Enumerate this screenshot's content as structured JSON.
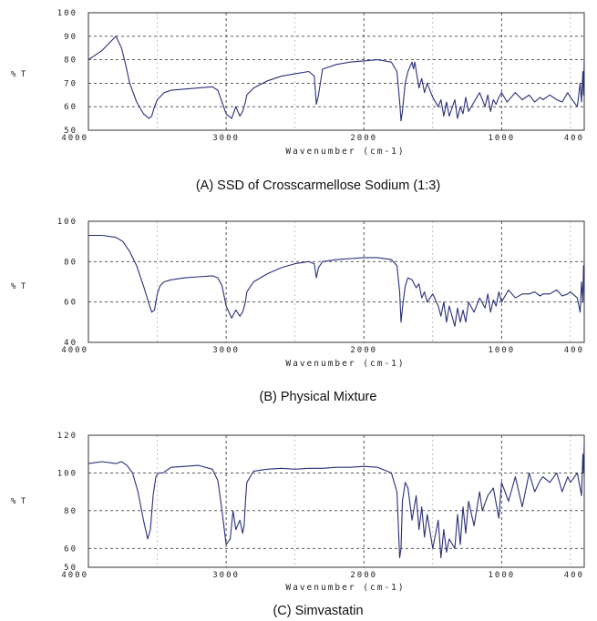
{
  "chart_data": [
    {
      "type": "line",
      "caption": "(A)  SSD of Crosscarmellose Sodium (1:3)",
      "xlabel": "Wavenumber  (cm-1)",
      "ylabel": "% T",
      "xlim": [
        4000,
        400
      ],
      "ylim": [
        50,
        100
      ],
      "x_ticks": [
        4000,
        3000,
        2000,
        1000,
        400
      ],
      "y_ticks": [
        50,
        60,
        70,
        80,
        90,
        100
      ],
      "grid": true,
      "series": [
        {
          "x": [
            4000,
            3900,
            3850,
            3800,
            3760,
            3730,
            3700,
            3650,
            3600,
            3560,
            3540,
            3520,
            3500,
            3450,
            3400,
            3300,
            3200,
            3100,
            3060,
            3000,
            2960,
            2930,
            2900,
            2880,
            2860,
            2850,
            2800,
            2700,
            2600,
            2500,
            2400,
            2360,
            2345,
            2330,
            2300,
            2200,
            2100,
            2000,
            1900,
            1800,
            1760,
            1740,
            1730,
            1720,
            1700,
            1680,
            1650,
            1640,
            1630,
            1600,
            1580,
            1560,
            1540,
            1500,
            1460,
            1440,
            1420,
            1400,
            1380,
            1340,
            1320,
            1300,
            1280,
            1260,
            1240,
            1200,
            1160,
            1120,
            1100,
            1080,
            1060,
            1040,
            1020,
            1000,
            960,
            900,
            850,
            800,
            760,
            720,
            700,
            650,
            600,
            560,
            520,
            500,
            450,
            430,
            420,
            410,
            405,
            400
          ],
          "y": [
            80,
            84,
            87,
            90,
            85,
            78,
            70,
            62,
            57,
            55,
            56,
            60,
            63,
            66,
            67,
            67.5,
            68,
            68.5,
            67,
            57,
            55,
            60,
            56,
            58,
            62,
            65,
            68,
            71,
            73,
            74,
            75,
            73,
            61,
            65,
            76,
            78,
            79,
            79.5,
            80,
            79,
            75,
            62,
            54,
            58,
            70,
            75,
            79,
            76,
            79,
            68,
            72,
            66,
            70,
            64,
            60,
            63,
            56,
            62,
            56,
            63,
            55,
            60,
            57,
            64,
            58,
            62,
            66,
            60,
            65,
            58,
            63,
            61,
            64,
            66,
            62,
            66,
            63,
            65,
            62,
            64,
            63,
            65,
            63,
            62,
            66,
            64,
            60,
            70,
            62,
            75,
            65,
            80
          ]
        }
      ]
    },
    {
      "type": "line",
      "caption": "(B)  Physical Mixture",
      "xlabel": "Wavenumber  (cm-1)",
      "ylabel": "% T",
      "xlim": [
        4000,
        400
      ],
      "ylim": [
        40,
        100
      ],
      "x_ticks": [
        4000,
        3000,
        2000,
        1000,
        400
      ],
      "y_ticks": [
        40,
        60,
        80,
        100
      ],
      "grid": true,
      "series": [
        {
          "x": [
            4000,
            3900,
            3800,
            3750,
            3700,
            3650,
            3600,
            3560,
            3540,
            3520,
            3500,
            3480,
            3450,
            3400,
            3300,
            3200,
            3100,
            3060,
            3030,
            3000,
            2960,
            2930,
            2900,
            2880,
            2860,
            2850,
            2800,
            2700,
            2600,
            2500,
            2400,
            2360,
            2345,
            2330,
            2300,
            2200,
            2100,
            2000,
            1900,
            1800,
            1760,
            1740,
            1730,
            1720,
            1700,
            1680,
            1650,
            1620,
            1600,
            1580,
            1560,
            1540,
            1500,
            1460,
            1440,
            1420,
            1400,
            1380,
            1340,
            1320,
            1300,
            1280,
            1260,
            1240,
            1200,
            1160,
            1120,
            1100,
            1080,
            1060,
            1040,
            1020,
            1000,
            950,
            900,
            850,
            800,
            760,
            720,
            700,
            650,
            600,
            560,
            520,
            500,
            450,
            430,
            420,
            410,
            405,
            400
          ],
          "y": [
            93,
            93,
            92,
            90,
            85,
            78,
            68,
            59,
            55,
            56,
            64,
            68,
            70,
            71,
            72,
            72.5,
            73,
            72,
            68,
            58,
            52,
            56,
            53,
            55,
            60,
            65,
            70,
            74,
            77,
            79,
            80,
            79,
            72,
            77,
            80,
            81,
            81.5,
            82,
            82,
            81,
            78,
            65,
            50,
            57,
            68,
            72,
            71,
            67,
            69,
            62,
            65,
            60,
            64,
            58,
            53,
            60,
            50,
            58,
            48,
            57,
            50,
            56,
            50,
            60,
            55,
            62,
            57,
            64,
            55,
            61,
            58,
            65,
            60,
            66,
            62,
            64,
            64,
            65,
            63,
            64,
            64,
            66,
            63,
            64,
            65,
            62,
            55,
            70,
            60,
            78,
            65
          ]
        }
      ]
    },
    {
      "type": "line",
      "caption": "(C)   Simvastatin",
      "xlabel": "Wavenumber  (cm-1)",
      "ylabel": "% T",
      "xlim": [
        4000,
        400
      ],
      "ylim": [
        50,
        120
      ],
      "x_ticks": [
        4000,
        3000,
        2000,
        1000,
        400
      ],
      "y_ticks": [
        50,
        60,
        80,
        100,
        120
      ],
      "grid": true,
      "series": [
        {
          "x": [
            4000,
            3900,
            3800,
            3760,
            3720,
            3680,
            3640,
            3600,
            3570,
            3550,
            3530,
            3510,
            3490,
            3460,
            3420,
            3400,
            3300,
            3200,
            3100,
            3060,
            3030,
            3000,
            2970,
            2950,
            2930,
            2900,
            2880,
            2870,
            2860,
            2850,
            2800,
            2700,
            2600,
            2500,
            2400,
            2300,
            2200,
            2100,
            2000,
            1900,
            1800,
            1760,
            1740,
            1730,
            1720,
            1700,
            1680,
            1650,
            1620,
            1600,
            1580,
            1560,
            1540,
            1500,
            1460,
            1440,
            1420,
            1400,
            1380,
            1340,
            1320,
            1300,
            1280,
            1260,
            1240,
            1200,
            1160,
            1140,
            1100,
            1060,
            1020,
            1000,
            950,
            900,
            850,
            800,
            760,
            720,
            700,
            650,
            600,
            560,
            520,
            500,
            450,
            430,
            420,
            410,
            405,
            400
          ],
          "y": [
            105,
            106,
            105,
            106,
            104,
            100,
            90,
            75,
            65,
            70,
            88,
            98,
            100,
            100,
            102,
            103,
            103.5,
            104,
            102,
            96,
            80,
            62,
            65,
            80,
            70,
            75,
            68,
            72,
            85,
            95,
            101,
            102,
            102.5,
            102,
            102.5,
            102.5,
            103,
            103,
            103.5,
            103,
            100,
            90,
            55,
            60,
            85,
            95,
            92,
            75,
            88,
            70,
            82,
            66,
            78,
            60,
            75,
            55,
            70,
            58,
            65,
            60,
            78,
            62,
            82,
            68,
            85,
            72,
            90,
            80,
            88,
            92,
            76,
            95,
            85,
            98,
            82,
            100,
            90,
            96,
            98,
            95,
            100,
            90,
            98,
            95,
            100,
            92,
            88,
            110,
            100,
            115
          ]
        }
      ]
    }
  ]
}
